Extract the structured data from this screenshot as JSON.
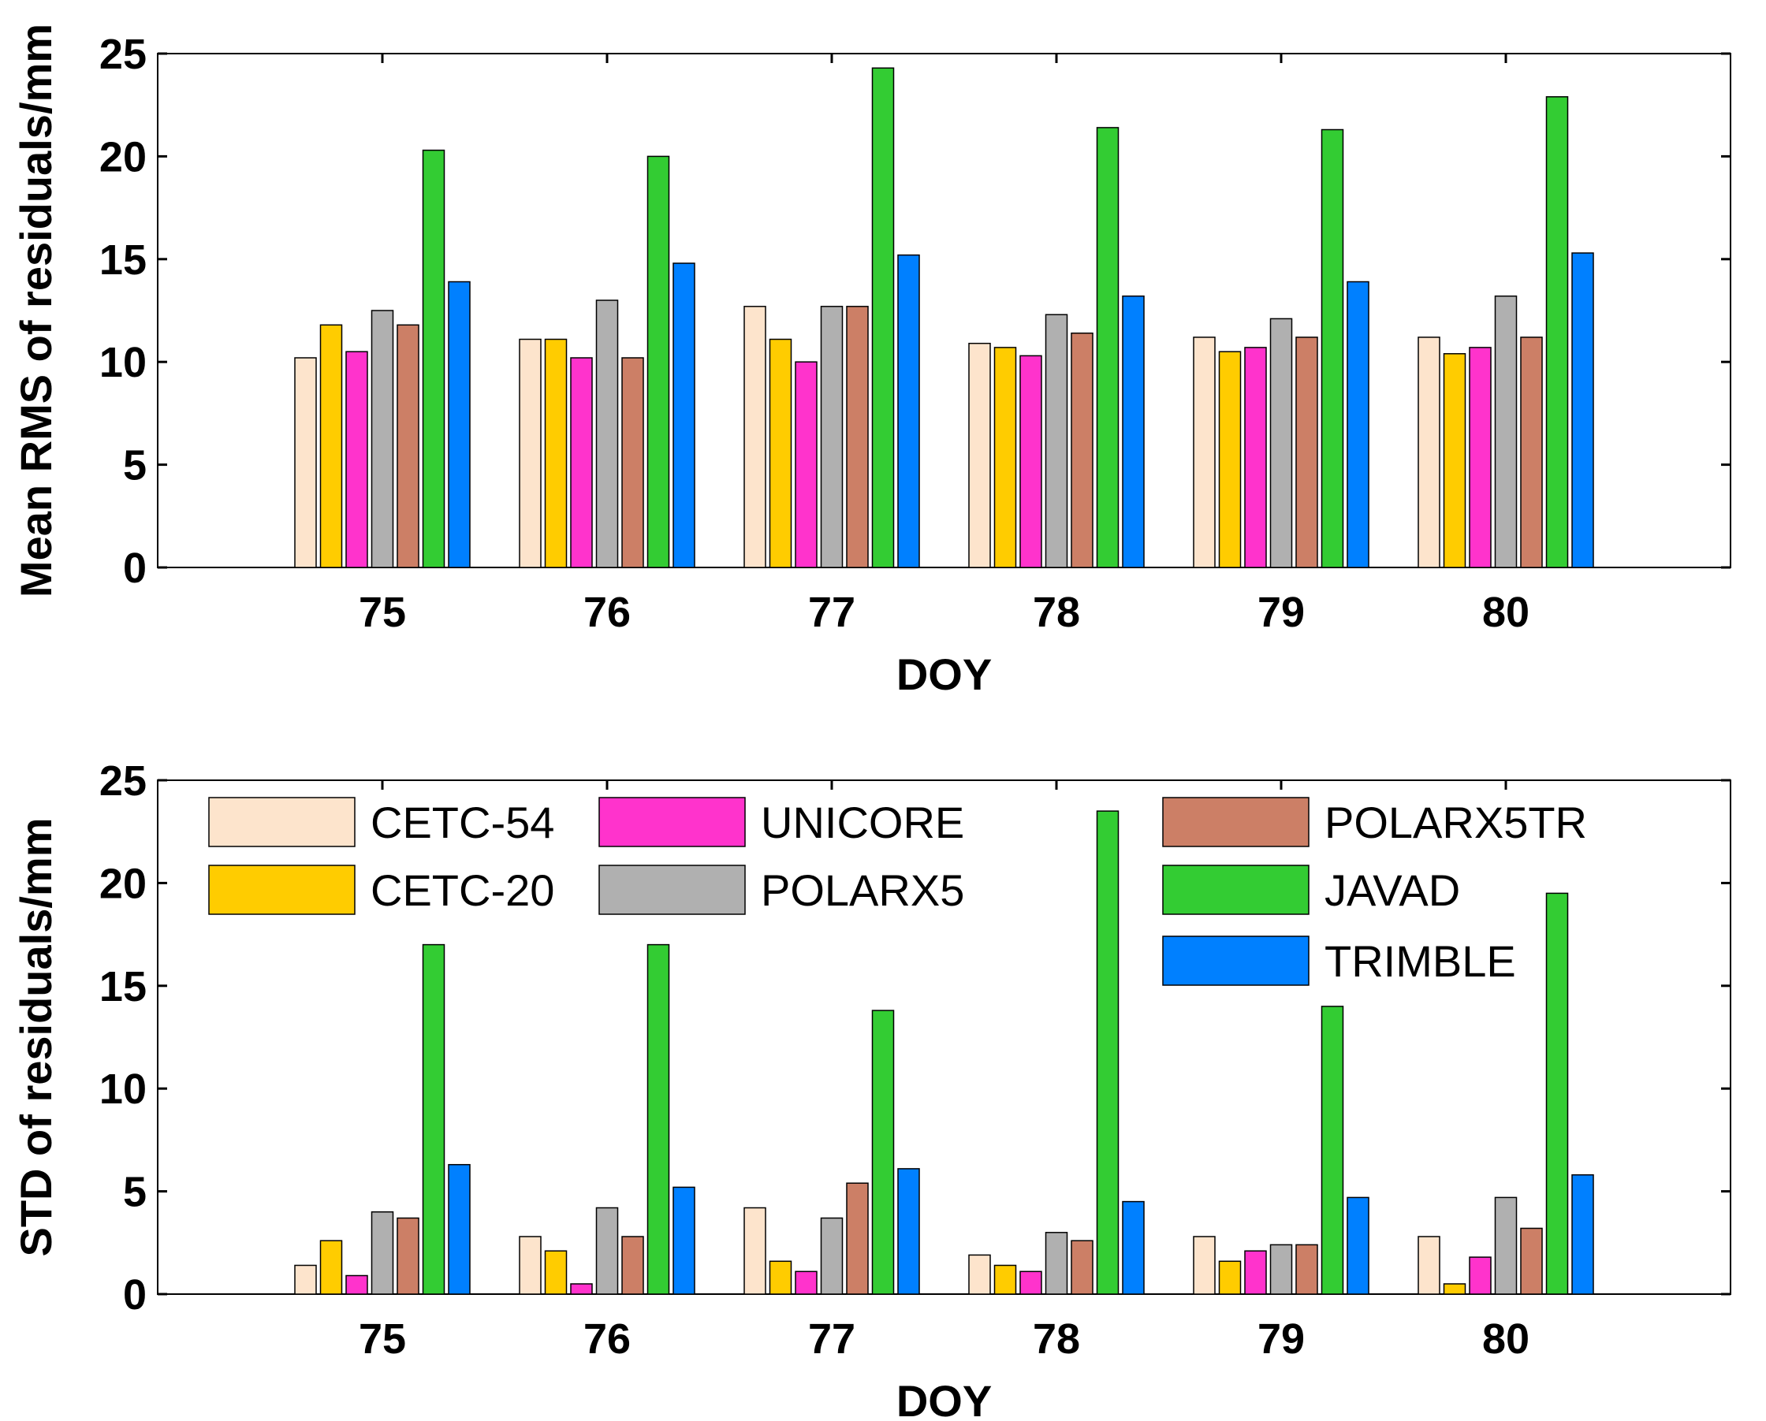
{
  "chart_data": [
    {
      "type": "bar",
      "title": "",
      "xlabel": "DOY",
      "ylabel": "Mean RMS of residuals/mm",
      "ylim": [
        0,
        25
      ],
      "yticks": [
        "0",
        "5",
        "10",
        "15",
        "20",
        "25"
      ],
      "categories": [
        "75",
        "76",
        "77",
        "78",
        "79",
        "80"
      ],
      "series": [
        {
          "name": "CETC-54",
          "color": "#fde4cc",
          "values": [
            10.2,
            11.1,
            12.7,
            10.9,
            11.2,
            11.2
          ]
        },
        {
          "name": "CETC-20",
          "color": "#ffcc00",
          "values": [
            11.8,
            11.1,
            11.1,
            10.7,
            10.5,
            10.4
          ]
        },
        {
          "name": "UNICORE",
          "color": "#ff33cc",
          "values": [
            10.5,
            10.2,
            10.0,
            10.3,
            10.7,
            10.7
          ]
        },
        {
          "name": "POLARX5",
          "color": "#b0b0b0",
          "values": [
            12.5,
            13.0,
            12.7,
            12.3,
            12.1,
            13.2
          ]
        },
        {
          "name": "POLARX5TR",
          "color": "#cc7f66",
          "values": [
            11.8,
            10.2,
            12.7,
            11.4,
            11.2,
            11.2
          ]
        },
        {
          "name": "JAVAD",
          "color": "#33cc33",
          "values": [
            20.3,
            20.0,
            24.3,
            21.4,
            21.3,
            22.9
          ]
        },
        {
          "name": "TRIMBLE",
          "color": "#0080ff",
          "values": [
            13.9,
            14.8,
            15.2,
            13.2,
            13.9,
            15.3
          ]
        }
      ]
    },
    {
      "type": "bar",
      "title": "",
      "xlabel": "DOY",
      "ylabel": "STD of residuals/mm",
      "ylim": [
        0,
        25
      ],
      "yticks": [
        "0",
        "5",
        "10",
        "15",
        "20",
        "25"
      ],
      "categories": [
        "75",
        "76",
        "77",
        "78",
        "79",
        "80"
      ],
      "legend": {
        "position": "top",
        "columns": [
          [
            "CETC-54",
            "CETC-20"
          ],
          [
            "UNICORE",
            "POLARX5"
          ],
          [
            "POLARX5TR",
            "JAVAD",
            "TRIMBLE"
          ]
        ]
      },
      "series": [
        {
          "name": "CETC-54",
          "color": "#fde4cc",
          "values": [
            1.4,
            2.8,
            4.2,
            1.9,
            2.8,
            2.8
          ]
        },
        {
          "name": "CETC-20",
          "color": "#ffcc00",
          "values": [
            2.6,
            2.1,
            1.6,
            1.4,
            1.6,
            0.5
          ]
        },
        {
          "name": "UNICORE",
          "color": "#ff33cc",
          "values": [
            0.9,
            0.5,
            1.1,
            1.1,
            2.1,
            1.8
          ]
        },
        {
          "name": "POLARX5",
          "color": "#b0b0b0",
          "values": [
            4.0,
            4.2,
            3.7,
            3.0,
            2.4,
            4.7
          ]
        },
        {
          "name": "POLARX5TR",
          "color": "#cc7f66",
          "values": [
            3.7,
            2.8,
            5.4,
            2.6,
            2.4,
            3.2
          ]
        },
        {
          "name": "JAVAD",
          "color": "#33cc33",
          "values": [
            17.0,
            17.0,
            13.8,
            23.5,
            14.0,
            19.5
          ]
        },
        {
          "name": "TRIMBLE",
          "color": "#0080ff",
          "values": [
            6.3,
            5.2,
            6.1,
            4.5,
            4.7,
            5.8
          ]
        }
      ]
    }
  ]
}
